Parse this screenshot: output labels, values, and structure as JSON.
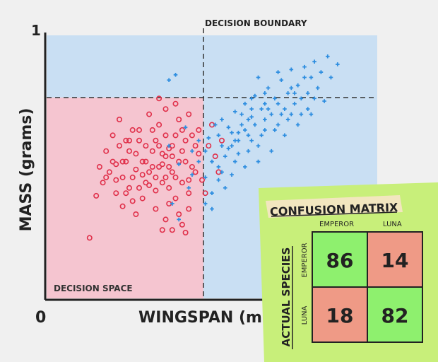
{
  "chart_data": {
    "type": "scatter",
    "xlabel": "WINGSPAN (mm)",
    "ylabel": "MASS (grams)",
    "x_tick_origin": "0",
    "y_tick_top": "1",
    "xlim": [
      0,
      1
    ],
    "ylim": [
      0,
      1
    ],
    "grid": false,
    "annotations": {
      "decision_boundary": "DECISION BOUNDARY",
      "decision_space": "DECISION SPACE"
    },
    "boundaries": {
      "x": 0.47,
      "y": 0.83
    },
    "colors": {
      "emperor_region": "#f5c5d0",
      "luna_region": "#c9dff3",
      "emperor_marker": "#e0304a",
      "luna_marker": "#2e8ee0"
    },
    "series": [
      {
        "marker": "circle",
        "color": "#e0304a",
        "points": [
          [
            0.13,
            0.23
          ],
          [
            0.15,
            0.39
          ],
          [
            0.17,
            0.44
          ],
          [
            0.19,
            0.48
          ],
          [
            0.21,
            0.51
          ],
          [
            0.23,
            0.35
          ],
          [
            0.25,
            0.6
          ],
          [
            0.27,
            0.32
          ],
          [
            0.29,
            0.47
          ],
          [
            0.31,
            0.7
          ],
          [
            0.33,
            0.41
          ],
          [
            0.35,
            0.55
          ],
          [
            0.37,
            0.36
          ],
          [
            0.39,
            0.62
          ],
          [
            0.41,
            0.28
          ],
          [
            0.43,
            0.45
          ],
          [
            0.45,
            0.58
          ],
          [
            0.48,
            0.4
          ],
          [
            0.5,
            0.66
          ],
          [
            0.52,
            0.48
          ],
          [
            0.18,
            0.56
          ],
          [
            0.2,
            0.62
          ],
          [
            0.22,
            0.68
          ],
          [
            0.24,
            0.52
          ],
          [
            0.26,
            0.46
          ],
          [
            0.28,
            0.64
          ],
          [
            0.3,
            0.58
          ],
          [
            0.32,
            0.5
          ],
          [
            0.34,
            0.66
          ],
          [
            0.36,
            0.72
          ],
          [
            0.38,
            0.54
          ],
          [
            0.4,
            0.68
          ],
          [
            0.42,
            0.6
          ],
          [
            0.44,
            0.5
          ],
          [
            0.46,
            0.64
          ],
          [
            0.21,
            0.4
          ],
          [
            0.23,
            0.46
          ],
          [
            0.25,
            0.42
          ],
          [
            0.27,
            0.55
          ],
          [
            0.29,
            0.38
          ],
          [
            0.31,
            0.48
          ],
          [
            0.33,
            0.6
          ],
          [
            0.35,
            0.44
          ],
          [
            0.37,
            0.5
          ],
          [
            0.39,
            0.46
          ],
          [
            0.41,
            0.56
          ],
          [
            0.43,
            0.4
          ],
          [
            0.45,
            0.48
          ],
          [
            0.3,
            0.52
          ],
          [
            0.32,
            0.56
          ],
          [
            0.34,
            0.5
          ],
          [
            0.36,
            0.54
          ],
          [
            0.38,
            0.48
          ],
          [
            0.4,
            0.52
          ],
          [
            0.33,
            0.46
          ],
          [
            0.35,
            0.51
          ],
          [
            0.37,
            0.57
          ],
          [
            0.31,
            0.43
          ],
          [
            0.29,
            0.52
          ],
          [
            0.27,
            0.49
          ],
          [
            0.25,
            0.56
          ],
          [
            0.28,
            0.6
          ],
          [
            0.26,
            0.64
          ],
          [
            0.24,
            0.6
          ],
          [
            0.22,
            0.58
          ],
          [
            0.2,
            0.52
          ],
          [
            0.18,
            0.46
          ],
          [
            0.16,
            0.5
          ],
          [
            0.34,
            0.76
          ],
          [
            0.36,
            0.62
          ],
          [
            0.39,
            0.74
          ],
          [
            0.41,
            0.64
          ],
          [
            0.43,
            0.7
          ],
          [
            0.46,
            0.55
          ],
          [
            0.49,
            0.58
          ],
          [
            0.51,
            0.54
          ],
          [
            0.53,
            0.6
          ],
          [
            0.37,
            0.42
          ],
          [
            0.39,
            0.38
          ],
          [
            0.41,
            0.44
          ],
          [
            0.43,
            0.34
          ],
          [
            0.4,
            0.32
          ],
          [
            0.36,
            0.3
          ],
          [
            0.33,
            0.34
          ],
          [
            0.3,
            0.44
          ],
          [
            0.28,
            0.42
          ],
          [
            0.38,
            0.26
          ],
          [
            0.42,
            0.25
          ],
          [
            0.35,
            0.26
          ],
          [
            0.47,
            0.45
          ],
          [
            0.24,
            0.4
          ],
          [
            0.26,
            0.37
          ],
          [
            0.23,
            0.52
          ],
          [
            0.21,
            0.45
          ],
          [
            0.32,
            0.64
          ],
          [
            0.34,
            0.58
          ],
          [
            0.36,
            0.46
          ],
          [
            0.38,
            0.58
          ],
          [
            0.44,
            0.62
          ],
          [
            0.42,
            0.52
          ]
        ]
      },
      {
        "marker": "cross",
        "color": "#2e8ee0",
        "points": [
          [
            0.37,
            0.58
          ],
          [
            0.4,
            0.51
          ],
          [
            0.44,
            0.47
          ],
          [
            0.46,
            0.52
          ],
          [
            0.48,
            0.56
          ],
          [
            0.49,
            0.61
          ],
          [
            0.5,
            0.52
          ],
          [
            0.52,
            0.62
          ],
          [
            0.53,
            0.68
          ],
          [
            0.55,
            0.57
          ],
          [
            0.56,
            0.63
          ],
          [
            0.57,
            0.71
          ],
          [
            0.58,
            0.6
          ],
          [
            0.59,
            0.66
          ],
          [
            0.6,
            0.74
          ],
          [
            0.61,
            0.62
          ],
          [
            0.62,
            0.69
          ],
          [
            0.63,
            0.77
          ],
          [
            0.64,
            0.58
          ],
          [
            0.65,
            0.72
          ],
          [
            0.66,
            0.64
          ],
          [
            0.67,
            0.8
          ],
          [
            0.68,
            0.7
          ],
          [
            0.69,
            0.76
          ],
          [
            0.7,
            0.66
          ],
          [
            0.71,
            0.83
          ],
          [
            0.72,
            0.72
          ],
          [
            0.73,
            0.78
          ],
          [
            0.74,
            0.87
          ],
          [
            0.75,
            0.74
          ],
          [
            0.76,
            0.81
          ],
          [
            0.77,
            0.7
          ],
          [
            0.78,
            0.88
          ],
          [
            0.79,
            0.78
          ],
          [
            0.8,
            0.84
          ],
          [
            0.81,
            0.9
          ],
          [
            0.82,
            0.8
          ],
          [
            0.83,
            0.86
          ],
          [
            0.85,
            0.92
          ],
          [
            0.86,
            0.84
          ],
          [
            0.88,
            0.89
          ],
          [
            0.84,
            0.75
          ],
          [
            0.8,
            0.7
          ],
          [
            0.76,
            0.66
          ],
          [
            0.72,
            0.62
          ],
          [
            0.68,
            0.56
          ],
          [
            0.64,
            0.52
          ],
          [
            0.6,
            0.5
          ],
          [
            0.56,
            0.47
          ],
          [
            0.52,
            0.45
          ],
          [
            0.5,
            0.4
          ],
          [
            0.48,
            0.36
          ],
          [
            0.54,
            0.42
          ],
          [
            0.58,
            0.55
          ],
          [
            0.62,
            0.6
          ],
          [
            0.66,
            0.68
          ],
          [
            0.7,
            0.74
          ],
          [
            0.74,
            0.8
          ],
          [
            0.78,
            0.84
          ],
          [
            0.62,
            0.76
          ],
          [
            0.66,
            0.78
          ],
          [
            0.7,
            0.86
          ],
          [
            0.64,
            0.84
          ],
          [
            0.59,
            0.7
          ],
          [
            0.55,
            0.65
          ],
          [
            0.53,
            0.58
          ],
          [
            0.51,
            0.66
          ],
          [
            0.57,
            0.52
          ],
          [
            0.61,
            0.56
          ],
          [
            0.65,
            0.62
          ],
          [
            0.69,
            0.64
          ],
          [
            0.73,
            0.68
          ],
          [
            0.77,
            0.76
          ],
          [
            0.81,
            0.76
          ],
          [
            0.4,
            0.3
          ],
          [
            0.38,
            0.36
          ],
          [
            0.5,
            0.34
          ],
          [
            0.52,
            0.5
          ],
          [
            0.56,
            0.58
          ],
          [
            0.6,
            0.64
          ],
          [
            0.63,
            0.66
          ],
          [
            0.67,
            0.72
          ],
          [
            0.71,
            0.7
          ],
          [
            0.75,
            0.78
          ],
          [
            0.79,
            0.72
          ],
          [
            0.58,
            0.63
          ],
          [
            0.62,
            0.72
          ],
          [
            0.66,
            0.74
          ],
          [
            0.54,
            0.54
          ],
          [
            0.48,
            0.46
          ],
          [
            0.39,
            0.85
          ],
          [
            0.37,
            0.83
          ],
          [
            0.46,
            0.6
          ],
          [
            0.44,
            0.56
          ],
          [
            0.42,
            0.65
          ],
          [
            0.43,
            0.42
          ],
          [
            0.53,
            0.48
          ],
          [
            0.57,
            0.6
          ],
          [
            0.61,
            0.68
          ],
          [
            0.74,
            0.7
          ]
        ]
      }
    ]
  },
  "confusion_matrix": {
    "title": "CONFUSION MATRIX",
    "row_axis_label": "ACTUAL SPECIES",
    "col_labels": [
      "EMPEROR",
      "LUNA"
    ],
    "row_labels": [
      "EMPEROR",
      "LUNA"
    ],
    "cells": [
      [
        86,
        14
      ],
      [
        18,
        82
      ]
    ],
    "colors": {
      "note": "#c8ef7a",
      "correct": "#8ef06e",
      "incorrect": "#ef9a86",
      "title_bg": "#f2e6bf"
    }
  }
}
